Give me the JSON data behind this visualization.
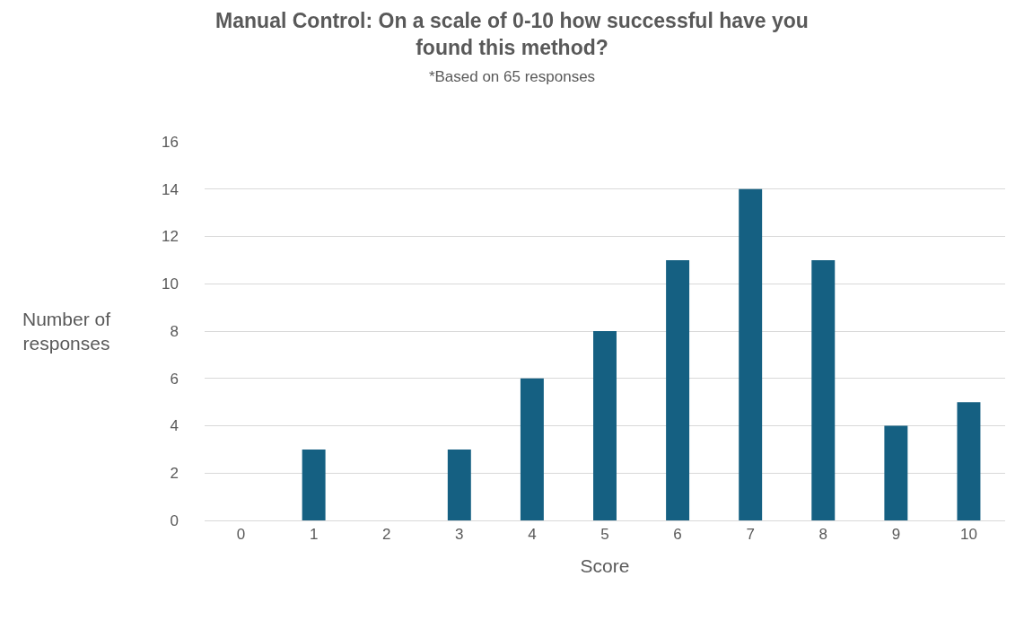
{
  "chart_data": {
    "type": "bar",
    "title": "Manual Control: On a scale of 0-10 how successful have you found this method?",
    "subtitle": "*Based on 65 responses",
    "xlabel": "Score",
    "ylabel": "Number of responses",
    "categories": [
      "0",
      "1",
      "2",
      "3",
      "4",
      "5",
      "6",
      "7",
      "8",
      "9",
      "10"
    ],
    "values": [
      0,
      3,
      0,
      3,
      6,
      8,
      11,
      14,
      11,
      4,
      5
    ],
    "color": "#156082",
    "ylim": [
      0,
      16
    ],
    "yticks": [
      0,
      2,
      4,
      6,
      8,
      10,
      12,
      14,
      16
    ],
    "grid": "y",
    "legend": false
  }
}
